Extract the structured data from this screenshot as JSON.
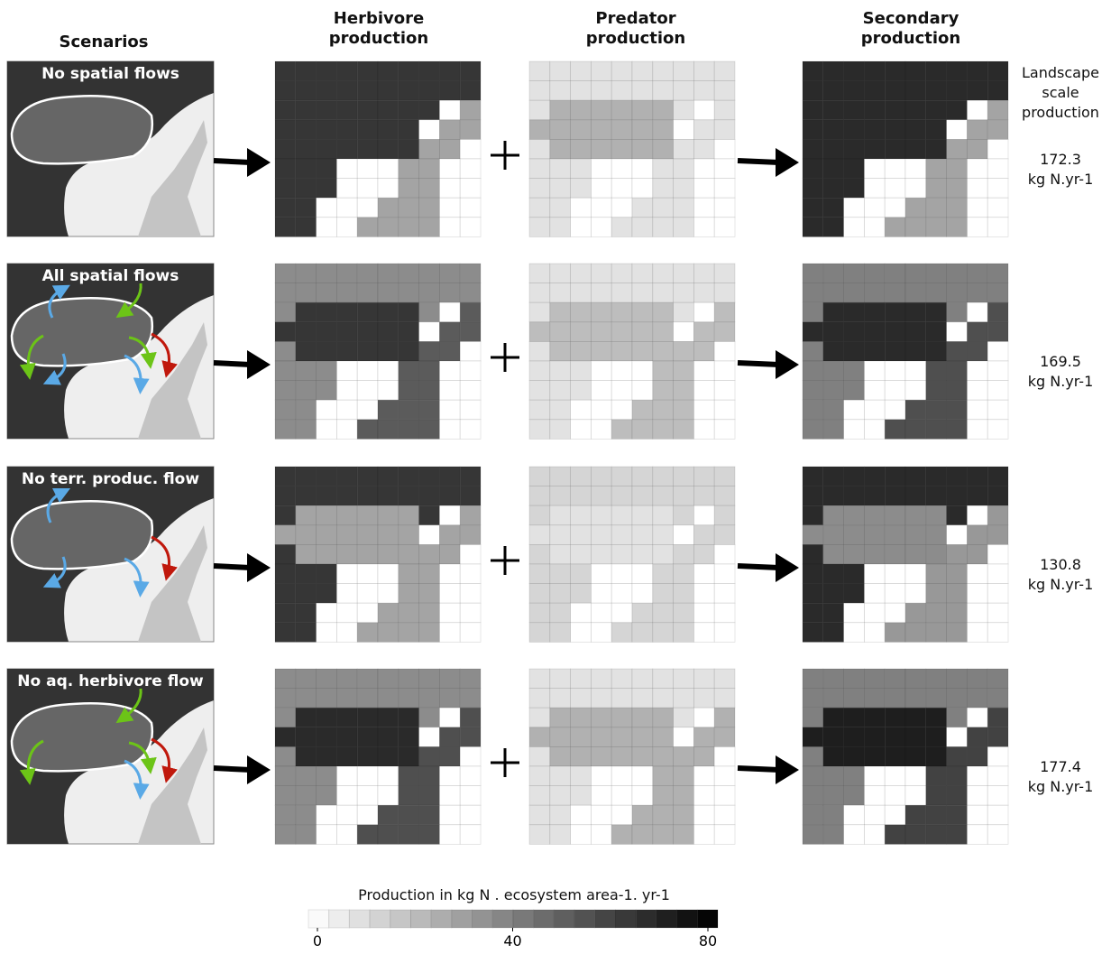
{
  "headers": {
    "scenarios": "Scenarios",
    "herbivore": "Herbivore production",
    "predator": "Predator production",
    "secondary": "Secondary production",
    "landscape": "Landscape scale production"
  },
  "scenarios": [
    {
      "label": "No spatial flows",
      "landscape_production": 172.3,
      "unit": "kg N.yr-1",
      "herbivore": {
        "terrestrial": 64,
        "lake": 64,
        "stream": 28
      },
      "predator": {
        "terrestrial": 8,
        "lake": 24,
        "stream": 8
      },
      "secondary": {
        "terrestrial": 68,
        "lake": 68,
        "stream": 28
      }
    },
    {
      "label": "All spatial flows",
      "landscape_production": 169.5,
      "unit": "kg N.yr-1",
      "herbivore": {
        "terrestrial": 36,
        "lake": 64,
        "stream": 52
      },
      "predator": {
        "terrestrial": 8,
        "lake": 20,
        "stream": 20
      },
      "secondary": {
        "terrestrial": 40,
        "lake": 68,
        "stream": 56
      }
    },
    {
      "label": "No terr. produc. flow",
      "landscape_production": 130.8,
      "unit": "kg N.yr-1",
      "herbivore": {
        "terrestrial": 64,
        "lake": 28,
        "stream": 28
      },
      "predator": {
        "terrestrial": 12,
        "lake": 8,
        "stream": 12
      },
      "secondary": {
        "terrestrial": 68,
        "lake": 36,
        "stream": 32
      }
    },
    {
      "label": "No aq. herbivore flow",
      "landscape_production": 177.4,
      "unit": "kg N.yr-1",
      "herbivore": {
        "terrestrial": 36,
        "lake": 68,
        "stream": 56
      },
      "predator": {
        "terrestrial": 8,
        "lake": 24,
        "stream": 24
      },
      "secondary": {
        "terrestrial": 40,
        "lake": 72,
        "stream": 60
      }
    }
  ],
  "colorbar": {
    "title": "Production in kg N . ecosystem area-1. yr-1",
    "lim": [
      0,
      80
    ],
    "ticks": [
      0,
      40,
      80
    ]
  }
}
